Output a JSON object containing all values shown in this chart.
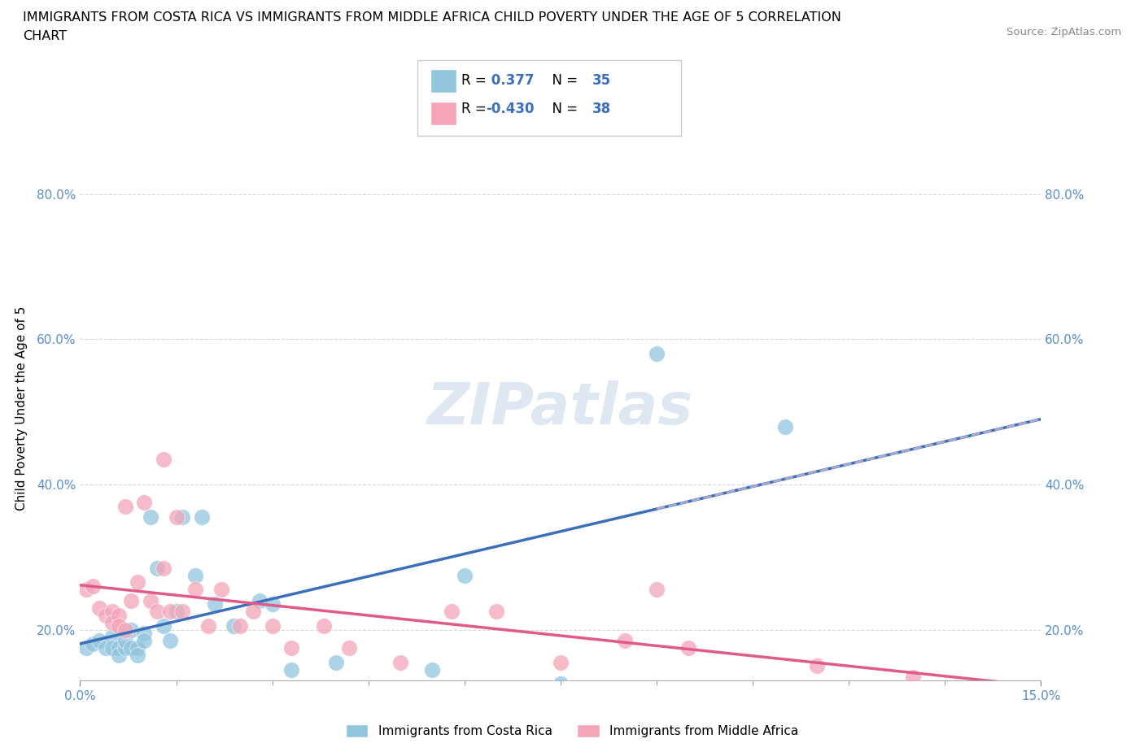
{
  "title_line1": "IMMIGRANTS FROM COSTA RICA VS IMMIGRANTS FROM MIDDLE AFRICA CHILD POVERTY UNDER THE AGE OF 5 CORRELATION",
  "title_line2": "CHART",
  "source": "Source: ZipAtlas.com",
  "ylabel": "Child Poverty Under the Age of 5",
  "xlim": [
    0.0,
    0.15
  ],
  "ylim": [
    0.13,
    0.88
  ],
  "ytick_labels": [
    "20.0%",
    "40.0%",
    "60.0%",
    "80.0%"
  ],
  "ytick_values": [
    0.2,
    0.4,
    0.6,
    0.8
  ],
  "xtick_minor": [
    0.015,
    0.03,
    0.045,
    0.06,
    0.075,
    0.09,
    0.105,
    0.12,
    0.135
  ],
  "watermark": "ZIPatlas",
  "blue_color": "#92c5de",
  "pink_color": "#f4a5b8",
  "blue_line_color": "#3b6fba",
  "pink_line_color": "#e05a8a",
  "blue_dash_color": "#aaaacc",
  "tick_color": "#5a8fc8",
  "grid_color": "#d8d8d8",
  "R_blue": 0.377,
  "N_blue": 35,
  "R_pink": -0.43,
  "N_pink": 38,
  "blue_scatter_x": [
    0.001,
    0.002,
    0.003,
    0.004,
    0.005,
    0.005,
    0.006,
    0.006,
    0.007,
    0.007,
    0.008,
    0.008,
    0.009,
    0.009,
    0.01,
    0.01,
    0.011,
    0.012,
    0.013,
    0.014,
    0.015,
    0.016,
    0.018,
    0.019,
    0.021,
    0.024,
    0.028,
    0.03,
    0.033,
    0.04,
    0.055,
    0.06,
    0.075,
    0.09,
    0.11
  ],
  "blue_scatter_y": [
    0.175,
    0.18,
    0.185,
    0.175,
    0.19,
    0.175,
    0.175,
    0.165,
    0.175,
    0.185,
    0.2,
    0.175,
    0.175,
    0.165,
    0.195,
    0.185,
    0.355,
    0.285,
    0.205,
    0.185,
    0.225,
    0.355,
    0.275,
    0.355,
    0.235,
    0.205,
    0.24,
    0.235,
    0.145,
    0.155,
    0.145,
    0.275,
    0.125,
    0.58,
    0.48
  ],
  "pink_scatter_x": [
    0.001,
    0.002,
    0.003,
    0.004,
    0.005,
    0.005,
    0.006,
    0.006,
    0.007,
    0.007,
    0.008,
    0.009,
    0.01,
    0.011,
    0.012,
    0.013,
    0.013,
    0.014,
    0.015,
    0.016,
    0.018,
    0.02,
    0.022,
    0.025,
    0.027,
    0.03,
    0.033,
    0.038,
    0.042,
    0.05,
    0.058,
    0.065,
    0.075,
    0.085,
    0.09,
    0.095,
    0.115,
    0.13
  ],
  "pink_scatter_y": [
    0.255,
    0.26,
    0.23,
    0.22,
    0.225,
    0.21,
    0.22,
    0.205,
    0.37,
    0.2,
    0.24,
    0.265,
    0.375,
    0.24,
    0.225,
    0.435,
    0.285,
    0.225,
    0.355,
    0.225,
    0.255,
    0.205,
    0.255,
    0.205,
    0.225,
    0.205,
    0.175,
    0.205,
    0.175,
    0.155,
    0.225,
    0.225,
    0.155,
    0.185,
    0.255,
    0.175,
    0.15,
    0.135
  ]
}
